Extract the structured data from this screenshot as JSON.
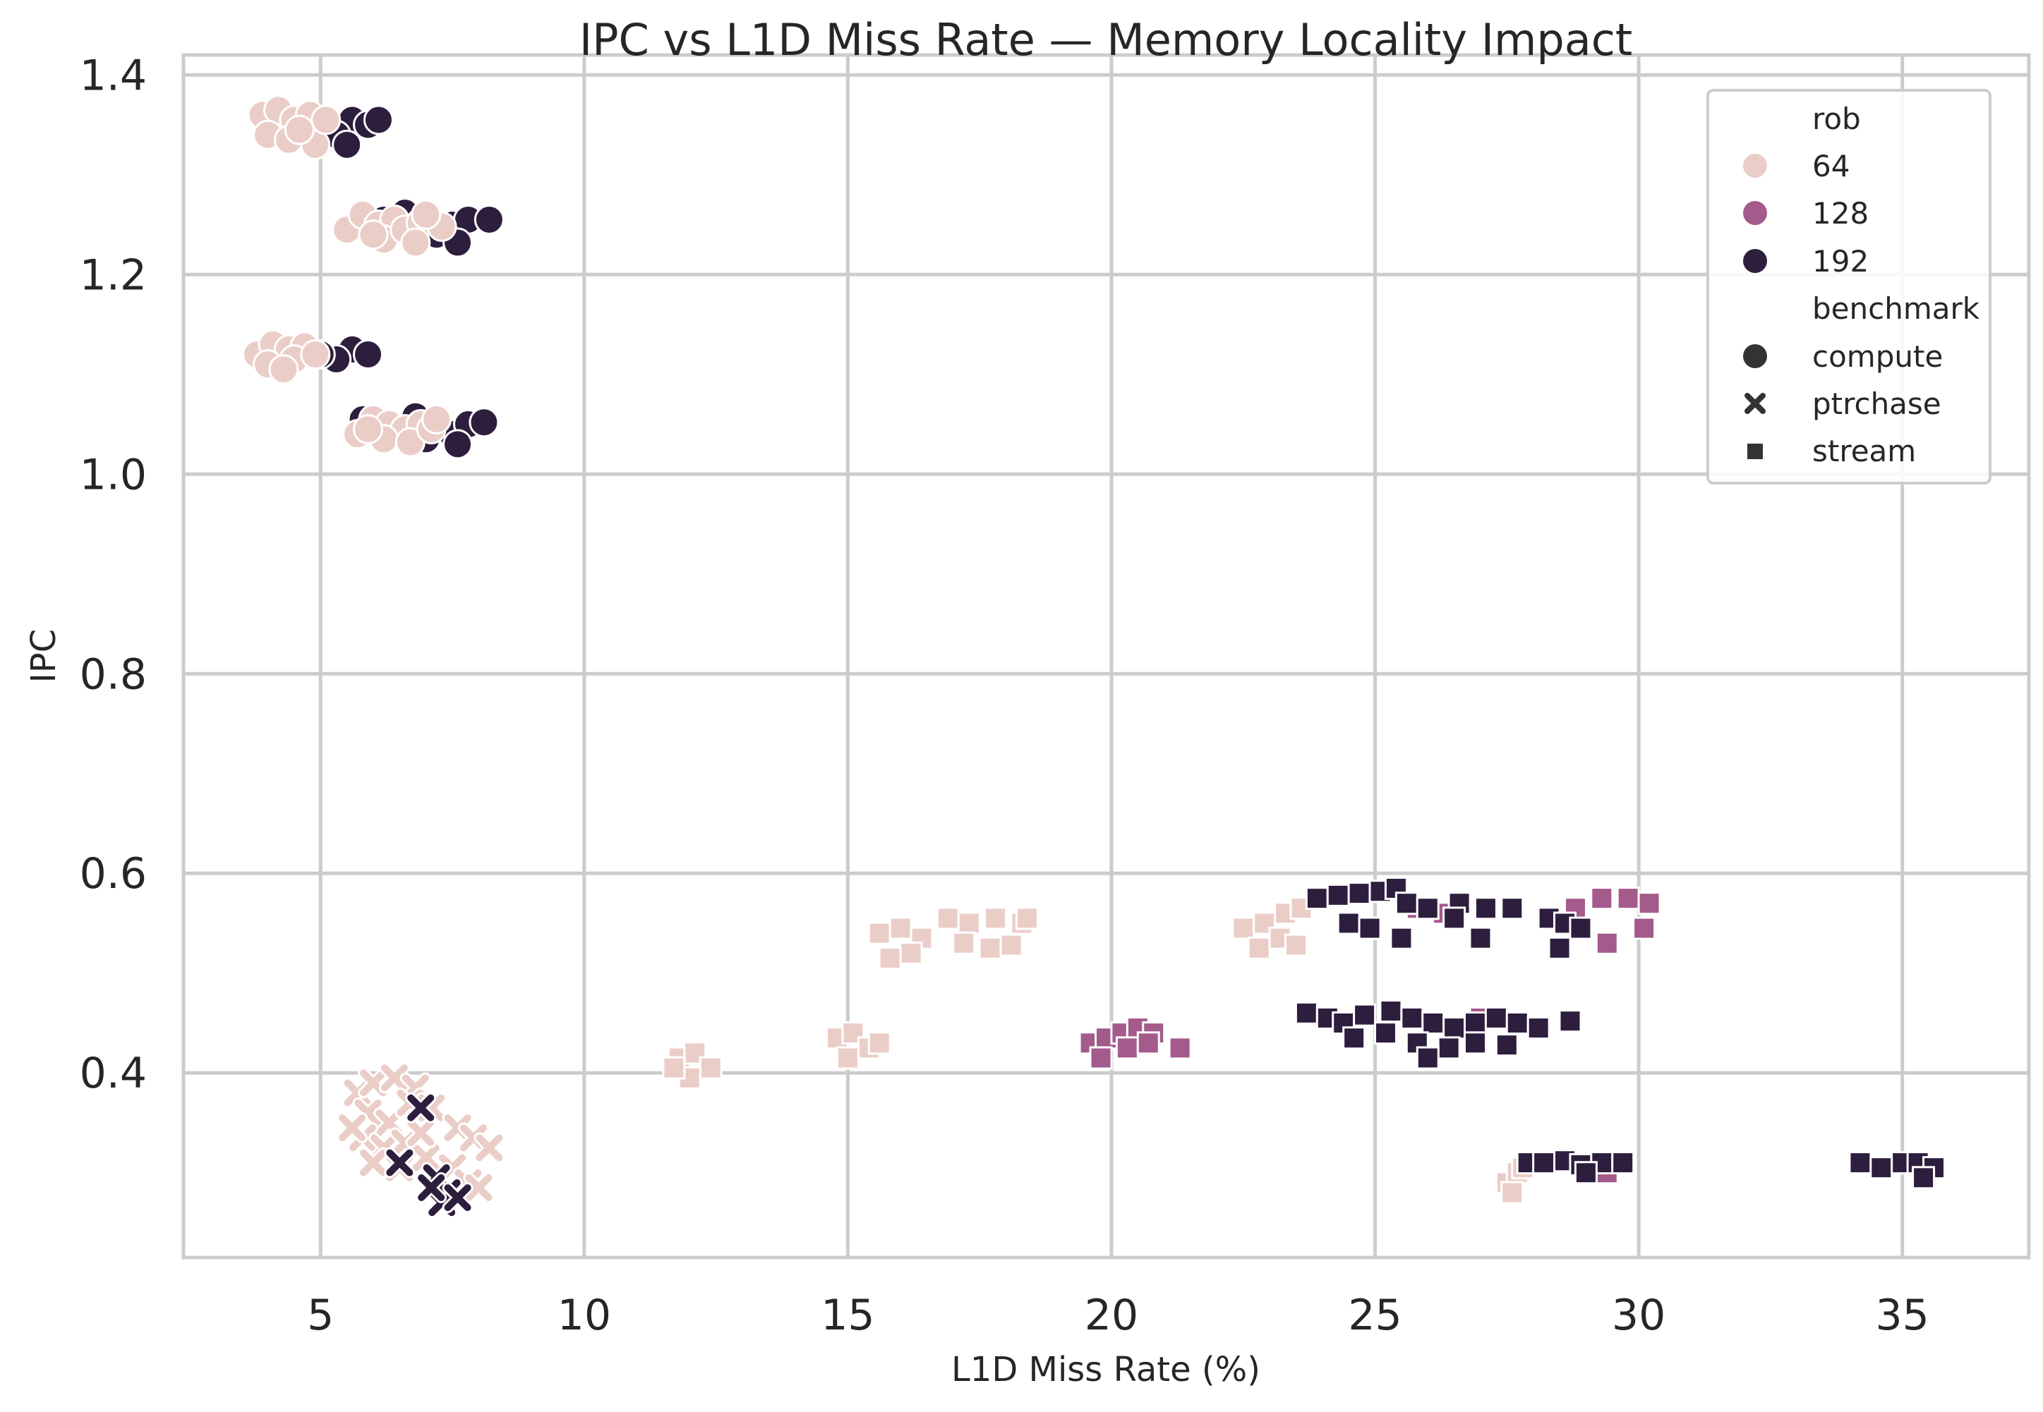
{
  "chart_data": {
    "type": "scatter",
    "title": "IPC vs L1D Miss Rate — Memory Locality Impact",
    "xlabel": "L1D Miss Rate (%)",
    "ylabel": "IPC",
    "xlim": [
      2.4,
      37.4
    ],
    "ylim": [
      0.215,
      1.42
    ],
    "xticks": [
      5,
      10,
      15,
      20,
      25,
      30,
      35
    ],
    "xtick_labels": [
      "5",
      "10",
      "15",
      "20",
      "25",
      "30",
      "35"
    ],
    "yticks": [
      0.4,
      0.6,
      0.8,
      1.0,
      1.2,
      1.4
    ],
    "ytick_labels": [
      "0.4",
      "0.6",
      "0.8",
      "1.0",
      "1.2",
      "1.4"
    ],
    "grid": true,
    "legend": {
      "placement": "top-right",
      "hue_title": "rob",
      "style_title": "benchmark",
      "hue_entries": [
        {
          "label": "64",
          "color": "#ebcdc8"
        },
        {
          "label": "128",
          "color": "#a45a8b"
        },
        {
          "label": "192",
          "color": "#2d1e3e"
        }
      ],
      "style_entries": [
        {
          "label": "compute",
          "marker": "circle"
        },
        {
          "label": "ptrchase",
          "marker": "x"
        },
        {
          "label": "stream",
          "marker": "square"
        }
      ]
    },
    "colors": {
      "64": "#ebcdc8",
      "128": "#a45a8b",
      "192": "#2d1e3e"
    },
    "series": [
      {
        "name": "192",
        "rob": "192",
        "benchmark": "compute",
        "points": [
          [
            5.6,
            1.355
          ],
          [
            5.9,
            1.35
          ],
          [
            6.1,
            1.355
          ],
          [
            5.3,
            1.34
          ],
          [
            5.5,
            1.33
          ],
          [
            4.9,
            1.35
          ],
          [
            5.8,
            1.26
          ],
          [
            6.2,
            1.255
          ],
          [
            6.6,
            1.262
          ],
          [
            7.0,
            1.258
          ],
          [
            7.5,
            1.25
          ],
          [
            7.8,
            1.255
          ],
          [
            8.2,
            1.255
          ],
          [
            7.2,
            1.24
          ],
          [
            7.6,
            1.232
          ],
          [
            6.8,
            1.245
          ],
          [
            5.6,
            1.125
          ],
          [
            5.9,
            1.12
          ],
          [
            5.3,
            1.115
          ],
          [
            5.0,
            1.12
          ],
          [
            5.8,
            1.055
          ],
          [
            6.2,
            1.05
          ],
          [
            6.8,
            1.058
          ],
          [
            7.2,
            1.045
          ],
          [
            7.5,
            1.04
          ],
          [
            7.8,
            1.05
          ],
          [
            8.1,
            1.052
          ],
          [
            7.6,
            1.03
          ],
          [
            7.0,
            1.035
          ]
        ]
      },
      {
        "name": "64",
        "rob": "64",
        "benchmark": "compute",
        "points": [
          [
            3.9,
            1.36
          ],
          [
            4.2,
            1.365
          ],
          [
            4.5,
            1.355
          ],
          [
            4.8,
            1.36
          ],
          [
            4.0,
            1.34
          ],
          [
            4.4,
            1.335
          ],
          [
            4.9,
            1.33
          ],
          [
            4.6,
            1.345
          ],
          [
            5.1,
            1.355
          ],
          [
            5.5,
            1.245
          ],
          [
            5.8,
            1.26
          ],
          [
            6.1,
            1.25
          ],
          [
            6.4,
            1.255
          ],
          [
            6.2,
            1.235
          ],
          [
            6.6,
            1.245
          ],
          [
            6.9,
            1.252
          ],
          [
            7.3,
            1.248
          ],
          [
            6.8,
            1.232
          ],
          [
            6.0,
            1.24
          ],
          [
            7.0,
            1.26
          ],
          [
            3.8,
            1.12
          ],
          [
            4.1,
            1.13
          ],
          [
            4.4,
            1.125
          ],
          [
            4.7,
            1.128
          ],
          [
            4.0,
            1.11
          ],
          [
            4.5,
            1.115
          ],
          [
            4.9,
            1.12
          ],
          [
            4.3,
            1.105
          ],
          [
            5.7,
            1.04
          ],
          [
            6.0,
            1.055
          ],
          [
            6.3,
            1.05
          ],
          [
            6.6,
            1.045
          ],
          [
            6.9,
            1.05
          ],
          [
            6.2,
            1.035
          ],
          [
            6.7,
            1.032
          ],
          [
            7.1,
            1.045
          ],
          [
            7.2,
            1.055
          ],
          [
            5.9,
            1.045
          ]
        ]
      },
      {
        "name": "64",
        "rob": "64",
        "benchmark": "ptrchase",
        "points": [
          [
            5.7,
            0.38
          ],
          [
            6.0,
            0.39
          ],
          [
            6.4,
            0.395
          ],
          [
            6.8,
            0.385
          ],
          [
            5.9,
            0.36
          ],
          [
            6.3,
            0.35
          ],
          [
            6.7,
            0.37
          ],
          [
            7.1,
            0.365
          ],
          [
            5.8,
            0.335
          ],
          [
            6.2,
            0.325
          ],
          [
            6.6,
            0.33
          ],
          [
            6.0,
            0.31
          ],
          [
            6.5,
            0.305
          ],
          [
            7.0,
            0.315
          ],
          [
            7.6,
            0.345
          ],
          [
            7.9,
            0.335
          ],
          [
            8.2,
            0.325
          ],
          [
            7.5,
            0.305
          ],
          [
            7.8,
            0.29
          ],
          [
            8.0,
            0.285
          ],
          [
            5.6,
            0.345
          ],
          [
            6.9,
            0.34
          ]
        ]
      },
      {
        "name": "192",
        "rob": "192",
        "benchmark": "ptrchase",
        "points": [
          [
            7.2,
            0.295
          ],
          [
            7.4,
            0.28
          ],
          [
            7.3,
            0.27
          ],
          [
            7.6,
            0.275
          ],
          [
            7.1,
            0.285
          ],
          [
            6.5,
            0.31
          ],
          [
            6.9,
            0.365
          ]
        ]
      },
      {
        "name": "64",
        "rob": "64",
        "benchmark": "stream",
        "points": [
          [
            15.6,
            0.54
          ],
          [
            16.0,
            0.545
          ],
          [
            16.4,
            0.535
          ],
          [
            15.8,
            0.515
          ],
          [
            16.2,
            0.52
          ],
          [
            16.9,
            0.555
          ],
          [
            17.3,
            0.55
          ],
          [
            17.8,
            0.555
          ],
          [
            18.3,
            0.55
          ],
          [
            17.2,
            0.53
          ],
          [
            17.7,
            0.525
          ],
          [
            18.1,
            0.528
          ],
          [
            18.4,
            0.555
          ],
          [
            11.8,
            0.415
          ],
          [
            12.1,
            0.42
          ],
          [
            12.4,
            0.405
          ],
          [
            12.0,
            0.395
          ],
          [
            11.7,
            0.405
          ],
          [
            14.8,
            0.435
          ],
          [
            15.1,
            0.44
          ],
          [
            15.4,
            0.425
          ],
          [
            15.6,
            0.43
          ],
          [
            15.0,
            0.415
          ],
          [
            22.5,
            0.545
          ],
          [
            22.9,
            0.55
          ],
          [
            23.3,
            0.56
          ],
          [
            23.6,
            0.565
          ],
          [
            22.8,
            0.525
          ],
          [
            23.2,
            0.535
          ],
          [
            23.5,
            0.528
          ],
          [
            27.5,
            0.29
          ],
          [
            27.7,
            0.3
          ],
          [
            27.6,
            0.28
          ],
          [
            27.8,
            0.305
          ]
        ]
      },
      {
        "name": "128",
        "rob": "128",
        "benchmark": "stream",
        "points": [
          [
            19.6,
            0.43
          ],
          [
            19.9,
            0.435
          ],
          [
            20.2,
            0.44
          ],
          [
            20.5,
            0.445
          ],
          [
            20.8,
            0.44
          ],
          [
            19.8,
            0.415
          ],
          [
            20.3,
            0.425
          ],
          [
            20.7,
            0.43
          ],
          [
            21.3,
            0.425
          ],
          [
            25.8,
            0.565
          ],
          [
            26.3,
            0.56
          ],
          [
            28.8,
            0.565
          ],
          [
            29.3,
            0.575
          ],
          [
            29.8,
            0.575
          ],
          [
            30.2,
            0.57
          ],
          [
            30.1,
            0.545
          ],
          [
            29.4,
            0.53
          ],
          [
            26.6,
            0.445
          ],
          [
            27.0,
            0.455
          ],
          [
            29.4,
            0.3
          ]
        ]
      },
      {
        "name": "192",
        "rob": "192",
        "benchmark": "stream",
        "points": [
          [
            23.9,
            0.575
          ],
          [
            24.3,
            0.578
          ],
          [
            24.7,
            0.58
          ],
          [
            25.1,
            0.582
          ],
          [
            25.4,
            0.585
          ],
          [
            24.5,
            0.55
          ],
          [
            24.9,
            0.545
          ],
          [
            25.5,
            0.535
          ],
          [
            25.6,
            0.57
          ],
          [
            26.0,
            0.565
          ],
          [
            26.6,
            0.57
          ],
          [
            27.1,
            0.565
          ],
          [
            27.6,
            0.565
          ],
          [
            26.5,
            0.555
          ],
          [
            27.0,
            0.535
          ],
          [
            28.3,
            0.555
          ],
          [
            28.6,
            0.55
          ],
          [
            28.9,
            0.545
          ],
          [
            28.5,
            0.525
          ],
          [
            23.7,
            0.46
          ],
          [
            24.1,
            0.455
          ],
          [
            24.4,
            0.45
          ],
          [
            24.8,
            0.458
          ],
          [
            25.3,
            0.462
          ],
          [
            25.7,
            0.455
          ],
          [
            26.1,
            0.45
          ],
          [
            26.5,
            0.445
          ],
          [
            26.9,
            0.45
          ],
          [
            27.3,
            0.455
          ],
          [
            27.7,
            0.45
          ],
          [
            28.1,
            0.445
          ],
          [
            28.7,
            0.452
          ],
          [
            24.6,
            0.435
          ],
          [
            25.2,
            0.44
          ],
          [
            25.8,
            0.43
          ],
          [
            26.4,
            0.425
          ],
          [
            26.0,
            0.415
          ],
          [
            26.9,
            0.43
          ],
          [
            27.5,
            0.428
          ],
          [
            27.9,
            0.31
          ],
          [
            28.2,
            0.31
          ],
          [
            28.6,
            0.312
          ],
          [
            28.9,
            0.308
          ],
          [
            29.3,
            0.31
          ],
          [
            29.7,
            0.31
          ],
          [
            29.0,
            0.3
          ],
          [
            34.2,
            0.31
          ],
          [
            34.6,
            0.305
          ],
          [
            35.0,
            0.31
          ],
          [
            35.3,
            0.31
          ],
          [
            35.6,
            0.305
          ],
          [
            35.4,
            0.295
          ]
        ]
      }
    ]
  }
}
